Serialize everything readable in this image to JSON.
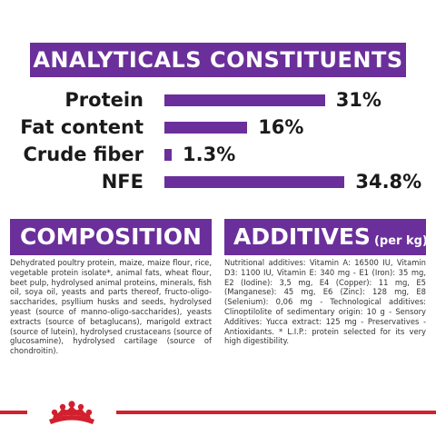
{
  "analytics": {
    "title": "ANALYTICALS CONSTITUENTS",
    "rows": [
      {
        "label": "Protein",
        "value_label": "31%",
        "percent": 31
      },
      {
        "label": "Fat content",
        "value_label": "16%",
        "percent": 16
      },
      {
        "label": "Crude fiber",
        "value_label": "1.3%",
        "percent": 1.3
      },
      {
        "label": "NFE",
        "value_label": "34.8%",
        "percent": 34.8
      }
    ]
  },
  "composition": {
    "title": "COMPOSITION",
    "text": "Dehydrated poultry protein, maize, maize flour, rice, vegetable protein isolate*, animal fats, wheat flour, beet pulp, hydrolysed animal proteins, minerals, fish oil, soya oil, yeasts and parts thereof, fructo-oligo-saccharides, psyllium husks and seeds, hydrolysed yeast (source of manno-oligo-saccharides), yeasts extracts (source of betaglucans), marigold extract (source of lutein), hydrolysed crustaceans (source of glucosamine), hydrolysed cartilage (source of chondroitin)."
  },
  "additives": {
    "title": "ADDITIVES",
    "subtitle": "(per kg)",
    "text": "Nutritional additives: Vitamin A: 16500 IU, Vitamin D3: 1100 IU, Vitamin E: 340 mg - E1 (Iron): 35 mg, E2 (Iodine): 3,5 mg, E4 (Copper): 11 mg, E5 (Manganese): 45 mg, E6 (Zinc): 128 mg, E8 (Selenium): 0,06 mg - Technological additives: Clinoptilolite of sedimentary origin: 10 g - Sensory Additives: Yucca extract: 125 mg - Preservatives - Antioxidants. * L.I.P.: protein selected for its very high digestibility."
  },
  "footer": {
    "logo_icon": "royal-canin-crown-icon",
    "accent_color": "#d2202f",
    "brand_color": "#6b2f9b"
  }
}
